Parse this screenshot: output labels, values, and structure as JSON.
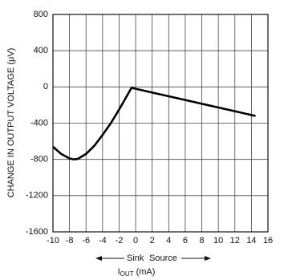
{
  "chart_data": {
    "type": "line",
    "y_label": "CHANGE IN OUTPUT VOLTAGE (μV)",
    "x_label": {
      "main": "I",
      "sub": "OUT",
      "unit": "(mA)"
    },
    "direction_labels": [
      "Sink",
      "Source"
    ],
    "x": [
      -10,
      -9,
      -8,
      -7.5,
      -7,
      -6,
      -5,
      -4,
      -3,
      -2,
      -1,
      -0.5,
      0,
      2,
      4,
      6,
      8,
      10,
      12,
      14,
      14.5
    ],
    "series": [
      {
        "name": "output voltage change",
        "color": "#000000",
        "values": [
          -660,
          -740,
          -790,
          -800,
          -795,
          -740,
          -650,
          -530,
          -400,
          -250,
          -90,
          -10,
          -20,
          -62,
          -103,
          -144,
          -186,
          -227,
          -268,
          -310,
          -320
        ]
      }
    ],
    "xlim": [
      -10,
      16
    ],
    "xticks": [
      -10,
      -8,
      -6,
      -4,
      -2,
      0,
      2,
      4,
      6,
      8,
      10,
      12,
      14,
      16
    ],
    "ylim": [
      -1600,
      800
    ],
    "yticks": [
      -1600,
      -1200,
      -800,
      -400,
      0,
      400,
      800
    ],
    "grid": true
  }
}
